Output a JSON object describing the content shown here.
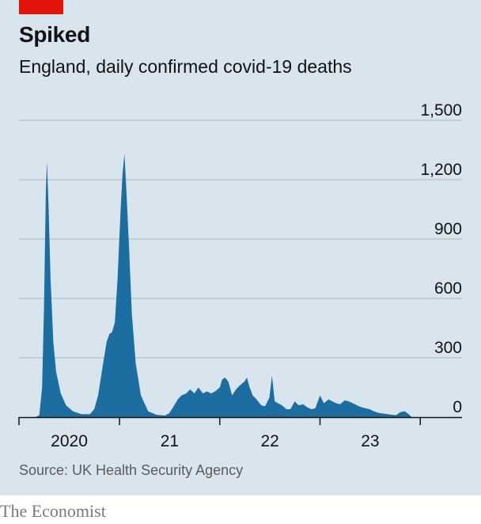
{
  "header": {
    "title": "Spiked",
    "subtitle": "England, daily confirmed covid-19 deaths"
  },
  "footer": {
    "source": "Source: UK Health Security Agency",
    "brand": "The Economist"
  },
  "colors": {
    "background": "#d9e5ee",
    "area": "#1c6ea1",
    "accent_tag": "#e3120b",
    "gridline": "#a7b6c3"
  },
  "chart_data": {
    "type": "area",
    "title": "Spiked",
    "subtitle": "England, daily confirmed covid-19 deaths",
    "xlabel": "",
    "ylabel": "",
    "ylim": [
      0,
      1500
    ],
    "yticks": [
      0,
      300,
      600,
      900,
      1200,
      1500
    ],
    "ytick_labels": [
      "0",
      "300",
      "600",
      "900",
      "1,200",
      "1,500"
    ],
    "xtick_labels": [
      "2020",
      "21",
      "22",
      "23"
    ],
    "grid": true,
    "series": [
      {
        "x": [
          "2020-03-01",
          "2020-03-15",
          "2020-03-25",
          "2020-04-01",
          "2020-04-05",
          "2020-04-08",
          "2020-04-12",
          "2020-04-18",
          "2020-04-25",
          "2020-05-05",
          "2020-05-15",
          "2020-06-01",
          "2020-06-20",
          "2020-07-15",
          "2020-08-15",
          "2020-09-15",
          "2020-10-01",
          "2020-10-15",
          "2020-11-01",
          "2020-11-15",
          "2020-11-25",
          "2020-12-05",
          "2020-12-15",
          "2020-12-25",
          "2021-01-05",
          "2021-01-12",
          "2021-01-19",
          "2021-01-26",
          "2021-02-05",
          "2021-02-15",
          "2021-03-01",
          "2021-03-20",
          "2021-04-15",
          "2021-05-15",
          "2021-06-15",
          "2021-07-01",
          "2021-07-15",
          "2021-08-01",
          "2021-08-15",
          "2021-09-01",
          "2021-09-15",
          "2021-10-01",
          "2021-10-15",
          "2021-11-01",
          "2021-11-15",
          "2021-12-01",
          "2021-12-15",
          "2022-01-01",
          "2022-01-10",
          "2022-01-20",
          "2022-02-01",
          "2022-02-15",
          "2022-03-01",
          "2022-03-15",
          "2022-04-01",
          "2022-04-10",
          "2022-04-20",
          "2022-05-01",
          "2022-05-15",
          "2022-06-01",
          "2022-06-15",
          "2022-07-01",
          "2022-07-10",
          "2022-07-20",
          "2022-08-01",
          "2022-08-15",
          "2022-09-01",
          "2022-09-15",
          "2022-10-01",
          "2022-10-15",
          "2022-11-01",
          "2022-11-15",
          "2022-12-01",
          "2022-12-15",
          "2023-01-01",
          "2023-01-15",
          "2023-02-01",
          "2023-02-15",
          "2023-03-01",
          "2023-03-15",
          "2023-04-01",
          "2023-04-15",
          "2023-05-01",
          "2023-05-15",
          "2023-06-01",
          "2023-06-15",
          "2023-07-01",
          "2023-07-15",
          "2023-08-01",
          "2023-08-20",
          "2023-09-05",
          "2023-09-20",
          "2023-10-05",
          "2023-10-20",
          "2023-11-05",
          "2023-11-20",
          "2023-12-01"
        ],
        "values": [
          0,
          10,
          150,
          550,
          900,
          1150,
          1290,
          1050,
          700,
          380,
          230,
          120,
          60,
          30,
          15,
          15,
          40,
          110,
          260,
          380,
          420,
          430,
          480,
          700,
          1050,
          1230,
          1330,
          1150,
          850,
          520,
          270,
          110,
          30,
          12,
          8,
          20,
          50,
          90,
          110,
          120,
          140,
          120,
          150,
          120,
          130,
          120,
          130,
          150,
          190,
          200,
          180,
          110,
          140,
          160,
          180,
          200,
          150,
          110,
          90,
          60,
          55,
          100,
          210,
          80,
          70,
          60,
          40,
          40,
          80,
          60,
          65,
          50,
          40,
          45,
          110,
          70,
          90,
          80,
          70,
          65,
          85,
          80,
          70,
          60,
          50,
          45,
          40,
          30,
          22,
          18,
          15,
          12,
          10,
          25,
          30,
          15,
          0
        ]
      }
    ]
  }
}
